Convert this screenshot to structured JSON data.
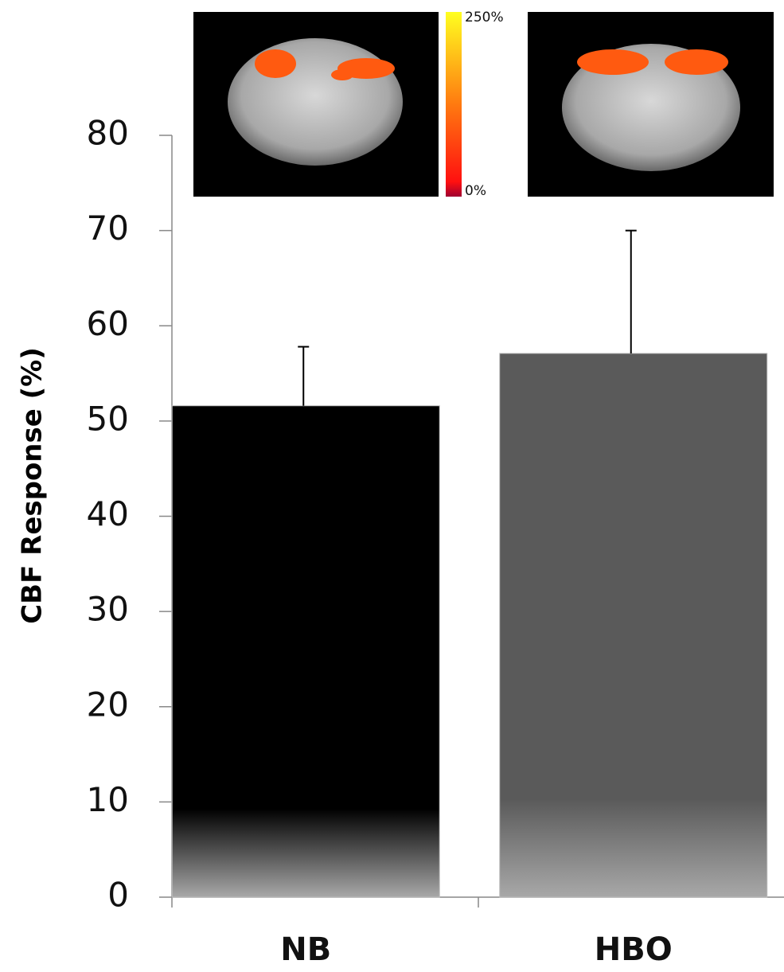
{
  "chart_data": {
    "type": "bar",
    "y_label": "CBF Response (%)",
    "categories": [
      "NB",
      "HBO"
    ],
    "values": [
      51.6,
      57.1
    ],
    "errors": [
      6.2,
      12.9
    ],
    "colors": [
      "#000000",
      "#5a5a5a"
    ],
    "ylim": [
      0,
      80
    ],
    "yticks": [
      0,
      10,
      20,
      30,
      40,
      50,
      60,
      70,
      80
    ],
    "grid": false,
    "colorbar": {
      "lim": [
        0,
        250
      ],
      "ticks": [
        {
          "value": 250,
          "label": "250%"
        },
        {
          "value": 0,
          "label": "0%"
        }
      ]
    }
  }
}
